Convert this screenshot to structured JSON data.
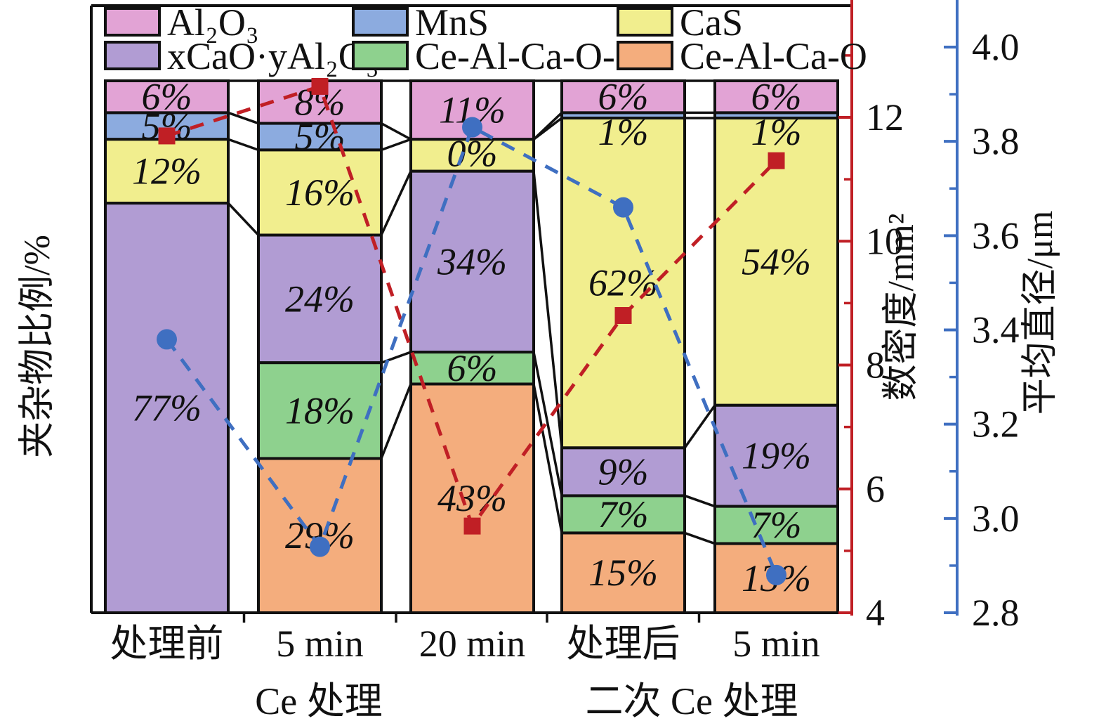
{
  "chart_data": {
    "type": "bar",
    "subtype": "stacked-percent-columns-with-two-line-series",
    "title": "",
    "categories": [
      "处理前",
      "5 min",
      "20 min",
      "处理后",
      "5 min"
    ],
    "group_labels": [
      "Ce 处理",
      "二次 Ce 处理"
    ],
    "legend_position": "top",
    "grid": false,
    "stacked_series": [
      {
        "name": "Al₂O₃",
        "color": "#e2a3d5",
        "values": [
          6,
          8,
          11,
          6,
          6
        ],
        "labels": [
          "6%",
          "8%",
          "11%",
          "6%",
          "6%"
        ]
      },
      {
        "name": "MnS",
        "color": "#8cabdf",
        "values": [
          5,
          5,
          0,
          1,
          1
        ],
        "labels": [
          "5%",
          "5%",
          "0%",
          "1%",
          "1%"
        ]
      },
      {
        "name": "CaS",
        "color": "#f1ee8e",
        "values": [
          12,
          16,
          6,
          62,
          54
        ],
        "labels": [
          "12%",
          "16%",
          "",
          "62%",
          "54%"
        ]
      },
      {
        "name": "xCaO·yAl₂O₃",
        "color": "#b19cd3",
        "values": [
          77,
          24,
          34,
          9,
          19
        ],
        "labels": [
          "77%",
          "24%",
          "34%",
          "9%",
          "19%"
        ]
      },
      {
        "name": "Ce-Al-Ca-O-S",
        "color": "#8ed18e",
        "values": [
          0,
          18,
          6,
          7,
          7
        ],
        "labels": [
          "",
          "18%",
          "6%",
          "7%",
          "7%"
        ]
      },
      {
        "name": "Ce-Al-Ca-O",
        "color": "#f4ad7d",
        "values": [
          0,
          29,
          43,
          15,
          13
        ],
        "labels": [
          "",
          "29%",
          "43%",
          "15%",
          "13%"
        ]
      }
    ],
    "line_series": [
      {
        "name": "数密度",
        "axis": "density",
        "marker": "square",
        "color": "#c01f25",
        "values": [
          11.7,
          12.5,
          5.4,
          8.8,
          11.3
        ]
      },
      {
        "name": "平均直径",
        "axis": "diameter",
        "marker": "circle",
        "color": "#3f6fc1",
        "values": [
          3.38,
          2.94,
          3.83,
          3.66,
          2.88
        ]
      }
    ],
    "axes": {
      "left": {
        "title": "夹杂物比例/%",
        "range": [
          0,
          100
        ]
      },
      "density": {
        "title": "数密度/mm²",
        "color": "#c01f25",
        "range": [
          4,
          13.8
        ],
        "major_ticks": [
          12,
          10,
          8,
          6,
          4
        ],
        "minor_ticks": [
          13,
          11,
          9,
          7,
          5
        ]
      },
      "diameter": {
        "title": "平均直径/μm",
        "color": "#3f6fc1",
        "range": [
          2.8,
          4.09
        ],
        "major_ticks": [
          4.0,
          3.8,
          3.6,
          3.4,
          3.2,
          3.0,
          2.8
        ],
        "minor_ticks": [
          3.9,
          3.7,
          3.5,
          3.3,
          3.1,
          2.9
        ]
      }
    }
  }
}
